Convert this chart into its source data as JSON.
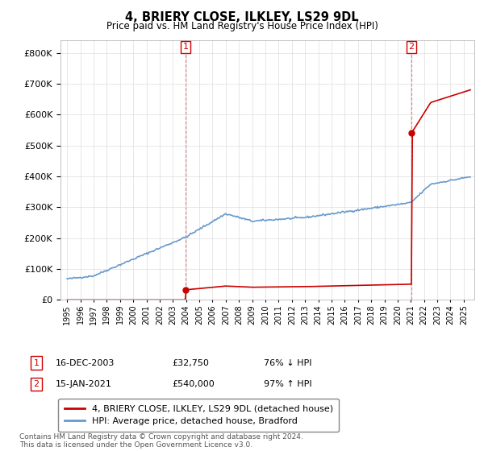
{
  "title": "4, BRIERY CLOSE, ILKLEY, LS29 9DL",
  "subtitle": "Price paid vs. HM Land Registry's House Price Index (HPI)",
  "hpi_label": "HPI: Average price, detached house, Bradford",
  "property_label": "4, BRIERY CLOSE, ILKLEY, LS29 9DL (detached house)",
  "sale1_date": "16-DEC-2003",
  "sale1_price": 32750,
  "sale1_hpi_pct": "76% ↓ HPI",
  "sale2_date": "15-JAN-2021",
  "sale2_price": 540000,
  "sale2_hpi_pct": "97% ↑ HPI",
  "footnote": "Contains HM Land Registry data © Crown copyright and database right 2024.\nThis data is licensed under the Open Government Licence v3.0.",
  "hpi_color": "#6699cc",
  "property_color": "#cc0000",
  "background_color": "#ffffff",
  "ylim_min": 0,
  "ylim_max": 840000,
  "sale1_x": 2003.958,
  "sale2_x": 2021.042
}
